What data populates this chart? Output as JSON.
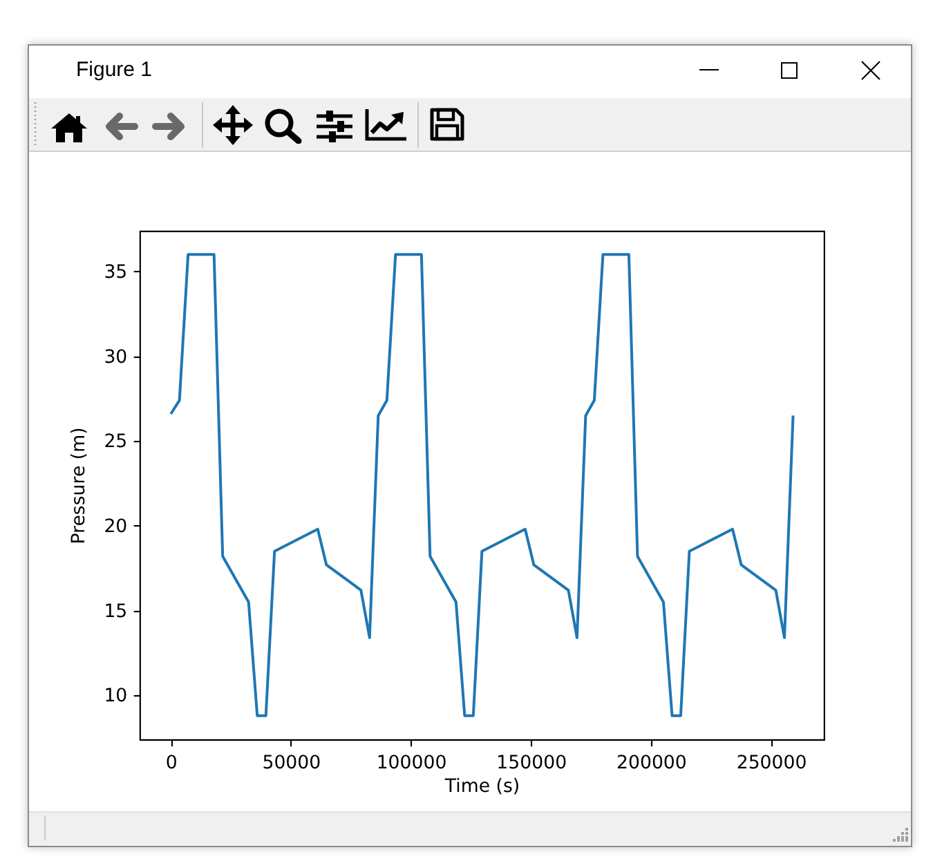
{
  "chart_data": {
    "type": "line",
    "xlabel": "Time (s)",
    "ylabel": "Pressure (m)",
    "annotations": [
      "Figure 1"
    ],
    "x": [
      0,
      3600,
      7200,
      18000,
      21600,
      32400,
      36000,
      39600,
      43200,
      61200,
      64800,
      79200,
      82800,
      86400,
      90000,
      93600,
      104400,
      108000,
      118800,
      122400,
      126000,
      129600,
      147600,
      151200,
      165600,
      169200,
      172800,
      176400,
      180000,
      190800,
      194400,
      205200,
      208800,
      212400,
      216000,
      234000,
      237600,
      252000,
      255600,
      259200
    ],
    "series": [
      {
        "color": "#1f77b4",
        "values": [
          26.6,
          27.4,
          36.0,
          36.0,
          18.2,
          15.5,
          8.8,
          8.8,
          18.5,
          19.8,
          17.7,
          16.2,
          13.4,
          26.5,
          27.4,
          36.0,
          36.0,
          18.2,
          15.5,
          8.8,
          8.8,
          18.5,
          19.8,
          17.7,
          16.2,
          13.4,
          26.5,
          27.4,
          36.0,
          36.0,
          18.2,
          15.5,
          8.8,
          8.8,
          18.5,
          19.8,
          17.7,
          16.2,
          13.4,
          26.5
        ]
      }
    ],
    "xlim": [
      -13000,
      272000
    ],
    "ylim": [
      7.4,
      37.4
    ],
    "xticks": [
      0,
      50000,
      100000,
      150000,
      200000,
      250000
    ],
    "yticks": [
      10,
      15,
      20,
      25,
      30,
      35
    ],
    "grid": false
  }
}
